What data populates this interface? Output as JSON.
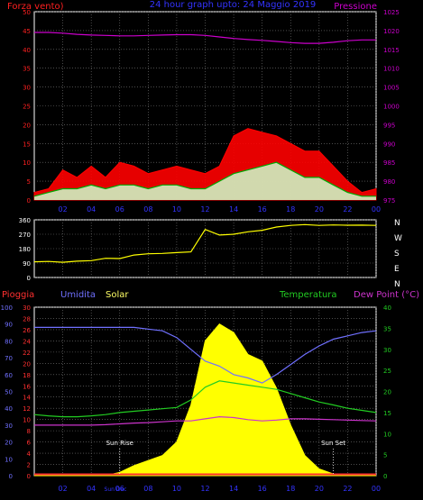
{
  "colors": {
    "background": "#000000",
    "frame": "#ffffff",
    "grid": "#7a7a7a",
    "wind_gust": "#ff0000",
    "wind_avg": "#00aa00",
    "wind_fill": "#ccffcc",
    "pressure": "#cc00cc",
    "direction": "#ffff00",
    "rain": "#ff3030",
    "humidity": "#7070ff",
    "solar": "#ffff00",
    "temperature": "#22cc22",
    "dew_point": "#cc33cc",
    "title": "#3333ff",
    "time_axis": "#3333ff"
  },
  "chart_data": [
    {
      "type": "line",
      "panel": "wind-pressure",
      "title": "24 hour graph upto: 24 Maggio 2019",
      "left_axis_label": "Forza vento)",
      "right_axis_label": "Pressione",
      "left_ticks": [
        "0",
        "5",
        "10",
        "15",
        "20",
        "25",
        "30",
        "35",
        "40",
        "45",
        "50"
      ],
      "right_ticks": [
        "975",
        "980",
        "985",
        "990",
        "995",
        "1000",
        "1005",
        "1010",
        "1015",
        "1020",
        "1025"
      ],
      "ylim_left": [
        0,
        50
      ],
      "ylim_right": [
        975,
        1025
      ],
      "x_ticks": [
        "02",
        "04",
        "06",
        "08",
        "10",
        "12",
        "14",
        "16",
        "18",
        "20",
        "22",
        "00"
      ],
      "x_hours": [
        0,
        1,
        2,
        3,
        4,
        5,
        6,
        7,
        8,
        9,
        10,
        11,
        12,
        13,
        14,
        15,
        16,
        17,
        18,
        19,
        20,
        21,
        22,
        23,
        24
      ],
      "series": [
        {
          "key": "gust",
          "values": [
            2,
            3,
            8,
            6,
            9,
            6,
            10,
            9,
            7,
            8,
            9,
            8,
            7,
            9,
            17,
            19,
            18,
            17,
            15,
            13,
            13,
            9,
            5,
            2,
            3
          ]
        },
        {
          "key": "avg",
          "values": [
            1,
            2,
            3,
            3,
            4,
            3,
            4,
            4,
            3,
            4,
            4,
            3,
            3,
            5,
            7,
            8,
            9,
            10,
            8,
            6,
            6,
            4,
            2,
            1,
            1
          ]
        },
        {
          "key": "pressure",
          "values": [
            1019.5,
            1019.5,
            1019.3,
            1019.0,
            1018.8,
            1018.7,
            1018.6,
            1018.6,
            1018.7,
            1018.8,
            1018.9,
            1018.9,
            1018.7,
            1018.3,
            1017.9,
            1017.6,
            1017.4,
            1017.1,
            1016.8,
            1016.6,
            1016.6,
            1016.9,
            1017.3,
            1017.5,
            1017.5
          ]
        }
      ]
    },
    {
      "type": "line",
      "panel": "wind-direction",
      "left_ticks": [
        "0",
        "90",
        "180",
        "270",
        "360"
      ],
      "right_ticks": [
        "N",
        "W",
        "S",
        "E",
        "N"
      ],
      "ylim": [
        0,
        360
      ],
      "x_hours": [
        0,
        1,
        2,
        3,
        4,
        5,
        6,
        7,
        8,
        9,
        10,
        11,
        12,
        13,
        14,
        15,
        16,
        17,
        18,
        19,
        20,
        21,
        22,
        23,
        24
      ],
      "series": [
        {
          "key": "direction",
          "values": [
            98,
            100,
            95,
            102,
            105,
            120,
            118,
            140,
            148,
            150,
            155,
            160,
            300,
            265,
            270,
            285,
            295,
            315,
            325,
            330,
            325,
            328,
            326,
            327,
            325
          ]
        }
      ]
    },
    {
      "type": "area",
      "panel": "weather",
      "labels": {
        "rain": "Pioggia",
        "humidity": "Umidita",
        "solar": "Solar",
        "temperature": "Temperatura",
        "dew_point": "Dew Point (°C)"
      },
      "rain_ticks": [
        "0",
        "10",
        "20",
        "30",
        "40",
        "50",
        "60",
        "70",
        "80",
        "90",
        "100"
      ],
      "humidity_ticks": [
        "0",
        "2",
        "4",
        "6",
        "8",
        "10",
        "12",
        "14",
        "16",
        "18",
        "20",
        "22",
        "24",
        "26",
        "28",
        "30"
      ],
      "temp_ticks": [
        "0",
        "5",
        "10",
        "15",
        "20",
        "25",
        "30",
        "35",
        "40"
      ],
      "x_ticks": [
        "02",
        "04",
        "06",
        "08",
        "10",
        "12",
        "14",
        "16",
        "18",
        "20",
        "22",
        "00"
      ],
      "annotations": [
        {
          "text": "Sun Rise",
          "hour": 6.0
        },
        {
          "text": "Sun Set",
          "hour": 21.0
        },
        {
          "text": "Sun Dec",
          "hour": 5.7
        }
      ],
      "x_hours": [
        0,
        1,
        2,
        3,
        4,
        5,
        6,
        7,
        8,
        9,
        10,
        11,
        12,
        13,
        14,
        15,
        16,
        17,
        18,
        19,
        20,
        21,
        22,
        23,
        24
      ],
      "series": [
        {
          "key": "rain",
          "values": [
            1,
            1,
            1,
            1,
            1,
            1,
            1,
            1,
            1,
            1,
            1,
            1,
            1,
            1,
            1,
            1,
            1,
            1,
            1,
            1,
            1,
            1,
            1,
            1,
            1
          ]
        },
        {
          "key": "humidity",
          "values": [
            88,
            88,
            88,
            88,
            88,
            88,
            88,
            88,
            87,
            86,
            82,
            75,
            68,
            65,
            60,
            58,
            55,
            60,
            66,
            72,
            77,
            81,
            83,
            85,
            86
          ]
        },
        {
          "key": "solar",
          "values": [
            0,
            0,
            0,
            0,
            0,
            0,
            20,
            60,
            90,
            120,
            200,
            420,
            800,
            900,
            850,
            720,
            680,
            520,
            300,
            120,
            40,
            10,
            0,
            0,
            0
          ]
        },
        {
          "key": "temperature",
          "values": [
            14.5,
            14.2,
            14.0,
            14.0,
            14.2,
            14.5,
            15.0,
            15.3,
            15.6,
            15.9,
            16.2,
            18.0,
            21.0,
            22.5,
            22.0,
            21.5,
            21.0,
            20.5,
            19.5,
            18.5,
            17.5,
            16.8,
            16.0,
            15.5,
            15.0
          ]
        },
        {
          "key": "dew_point",
          "values": [
            12.0,
            12.0,
            12.0,
            12.0,
            12.0,
            12.1,
            12.3,
            12.5,
            12.6,
            12.8,
            13.0,
            13.0,
            13.5,
            14.0,
            13.8,
            13.3,
            13.0,
            13.2,
            13.5,
            13.5,
            13.4,
            13.3,
            13.2,
            13.1,
            13.0
          ]
        }
      ]
    }
  ]
}
